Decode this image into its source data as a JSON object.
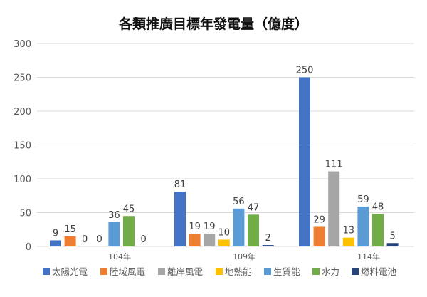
{
  "chart_data": {
    "type": "bar",
    "title": "各類推廣目標年發電量（億度）",
    "categories": [
      "104年",
      "109年",
      "114年"
    ],
    "series": [
      {
        "name": "太陽光電",
        "color": "#4472C4",
        "values": [
          9,
          81,
          250
        ]
      },
      {
        "name": "陸域風電",
        "color": "#ED7D31",
        "values": [
          15,
          19,
          29
        ]
      },
      {
        "name": "離岸風電",
        "color": "#A5A5A5",
        "values": [
          0,
          19,
          111
        ]
      },
      {
        "name": "地熱能",
        "color": "#FFC000",
        "values": [
          0,
          10,
          13
        ]
      },
      {
        "name": "生質能",
        "color": "#5B9BD5",
        "values": [
          36,
          56,
          59
        ]
      },
      {
        "name": "水力",
        "color": "#70AD47",
        "values": [
          45,
          47,
          48
        ]
      },
      {
        "name": "燃料電池",
        "color": "#264478",
        "values": [
          0,
          2,
          5
        ]
      }
    ],
    "ylim": [
      0,
      300
    ],
    "yticks": [
      0,
      50,
      100,
      150,
      200,
      250,
      300
    ],
    "grid": true,
    "legend": "bottom",
    "xlabel": "",
    "ylabel": ""
  }
}
